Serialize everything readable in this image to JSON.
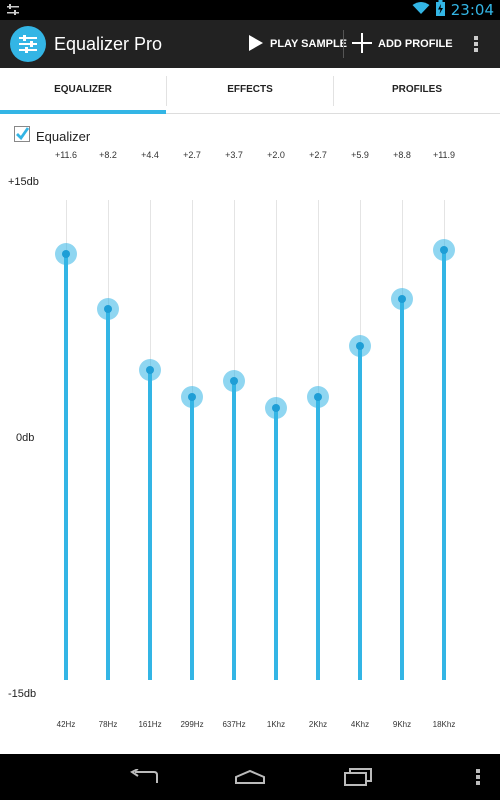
{
  "status_bar": {
    "time": "23:04",
    "left_icon": "equalizer-notification-icon",
    "wifi_icon": "wifi-icon",
    "battery_icon": "battery-charging-icon",
    "accent": "#33b5e5"
  },
  "action_bar": {
    "app_icon": "equalizer-app-icon",
    "title": "Equalizer Pro",
    "play_sample_label": "PLAY SAMPLE",
    "add_profile_label": "ADD PROFILE",
    "overflow_icon": "overflow-menu-icon"
  },
  "tabs": [
    {
      "label": "EQUALIZER",
      "selected": true
    },
    {
      "label": "EFFECTS",
      "selected": false
    },
    {
      "label": "PROFILES",
      "selected": false
    }
  ],
  "equalizer": {
    "enabled_label": "Equalizer",
    "enabled": true,
    "top_db_label": "+15db",
    "mid_db_label": "0db",
    "bottom_db_label": "-15db",
    "min_db": -15,
    "max_db": 15,
    "bands": [
      {
        "freq": "42Hz",
        "value_label": "+11.6",
        "value": 11.6
      },
      {
        "freq": "78Hz",
        "value_label": "+8.2",
        "value": 8.2
      },
      {
        "freq": "161Hz",
        "value_label": "+4.4",
        "value": 4.4
      },
      {
        "freq": "299Hz",
        "value_label": "+2.7",
        "value": 2.7
      },
      {
        "freq": "637Hz",
        "value_label": "+3.7",
        "value": 3.7
      },
      {
        "freq": "1Khz",
        "value_label": "+2.0",
        "value": 2.0
      },
      {
        "freq": "2Khz",
        "value_label": "+2.7",
        "value": 2.7
      },
      {
        "freq": "4Khz",
        "value_label": "+5.9",
        "value": 5.9
      },
      {
        "freq": "9Khz",
        "value_label": "+8.8",
        "value": 8.8
      },
      {
        "freq": "18Khz",
        "value_label": "+11.9",
        "value": 11.9
      }
    ]
  },
  "nav_bar": {
    "back_icon": "back-icon",
    "home_icon": "home-icon",
    "recents_icon": "recent-apps-icon",
    "menu_icon": "menu-icon"
  }
}
